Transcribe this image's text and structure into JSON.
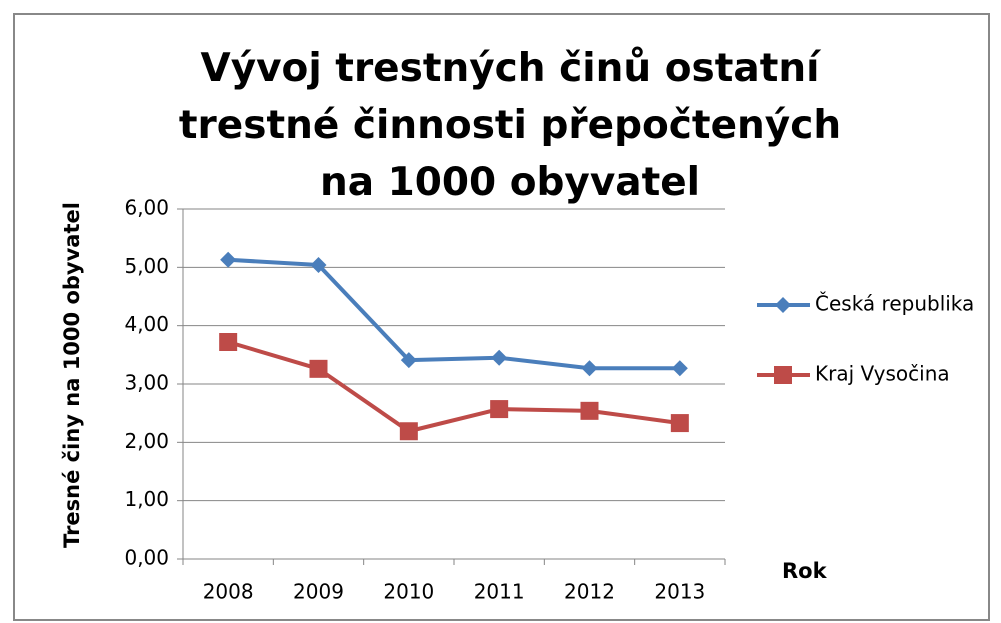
{
  "chart_data": {
    "type": "line",
    "title": "Vývoj trestných činů ostatní trestné činnosti přepočtených na 1000 obyvatel",
    "x_label": "Rok",
    "y_label": "Tresné činy na 1000 obyvatel",
    "categories": [
      "2008",
      "2009",
      "2010",
      "2011",
      "2012",
      "2013"
    ],
    "series": [
      {
        "name": "Česká republika",
        "color": "#4a7ebb",
        "marker": "diamond",
        "values": [
          5.13,
          5.04,
          3.41,
          3.45,
          3.27,
          3.27
        ]
      },
      {
        "name": "Kraj Vysočina",
        "color": "#be4b48",
        "marker": "square",
        "values": [
          3.72,
          3.26,
          2.19,
          2.57,
          2.54,
          2.33
        ]
      }
    ],
    "ylim": [
      0,
      6
    ],
    "yticks": [
      {
        "value": 0,
        "label": "0,00"
      },
      {
        "value": 1,
        "label": "1,00"
      },
      {
        "value": 2,
        "label": "2,00"
      },
      {
        "value": 3,
        "label": "3,00"
      },
      {
        "value": 4,
        "label": "4,00"
      },
      {
        "value": 5,
        "label": "5,00"
      },
      {
        "value": 6,
        "label": "6,00"
      }
    ],
    "grid": true,
    "legend": "right"
  }
}
